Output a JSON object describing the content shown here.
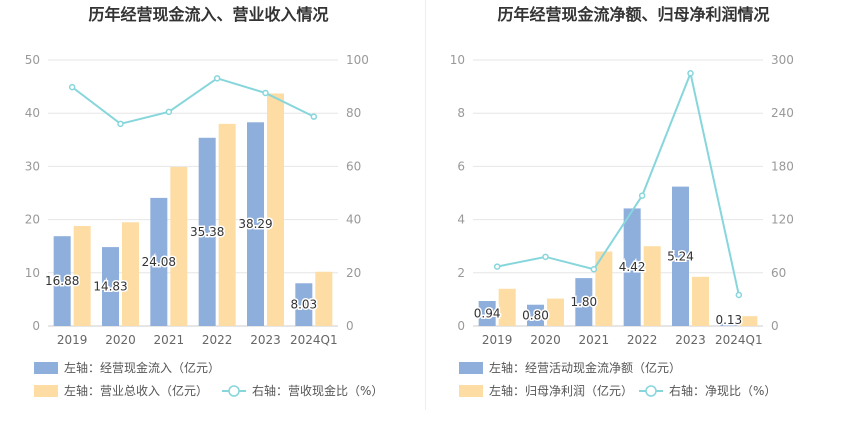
{
  "charts": [
    {
      "title": "历年经营现金流入、营业收入情况",
      "categories": [
        "2019",
        "2020",
        "2021",
        "2022",
        "2023",
        "2024Q1"
      ],
      "left_ticks": [
        "0",
        "10",
        "20",
        "30",
        "40",
        "50"
      ],
      "right_ticks": [
        "0",
        "20",
        "40",
        "60",
        "80",
        "100"
      ],
      "legend": [
        "左轴：经营现金流入（亿元）",
        "左轴：营业总收入（亿元）",
        "右轴：营收现金比（%）"
      ],
      "colors": {
        "bar1": "#8eaedc",
        "bar2": "#fedda5",
        "line": "#86d6dc"
      }
    },
    {
      "title": "历年经营现金流净额、归母净利润情况",
      "categories": [
        "2019",
        "2020",
        "2021",
        "2022",
        "2023",
        "2024Q1"
      ],
      "left_ticks": [
        "0",
        "2",
        "4",
        "6",
        "8",
        "10"
      ],
      "right_ticks": [
        "0",
        "60",
        "120",
        "180",
        "240",
        "300"
      ],
      "legend": [
        "左轴：经营活动现金流净额（亿元）",
        "左轴：归母净利润（亿元）",
        "右轴：净现比（%）"
      ],
      "colors": {
        "bar1": "#8eaedc",
        "bar2": "#fedda5",
        "line": "#86d6dc"
      }
    }
  ],
  "chart_data": [
    {
      "type": "bar",
      "categories": [
        "2019",
        "2020",
        "2021",
        "2022",
        "2023",
        "2024Q1"
      ],
      "series": [
        {
          "name": "经营现金流入（亿元）",
          "axis": "left",
          "values": [
            16.88,
            14.83,
            24.08,
            35.38,
            38.29,
            8.03
          ],
          "labels": [
            "16.88",
            "14.83",
            "24.08",
            "35.38",
            "38.29",
            "8.03"
          ]
        },
        {
          "name": "营业总收入（亿元）",
          "axis": "left",
          "values": [
            18.8,
            19.5,
            29.9,
            38.0,
            43.7,
            10.2
          ]
        },
        {
          "name": "营收现金比（%）",
          "axis": "right",
          "type": "line",
          "values": [
            89.8,
            76.0,
            80.5,
            93.1,
            87.6,
            78.7
          ]
        }
      ],
      "ylim_left": [
        0,
        50
      ],
      "ylim_right": [
        0,
        100
      ],
      "grid": true,
      "legend_position": "bottom"
    },
    {
      "type": "bar",
      "categories": [
        "2019",
        "2020",
        "2021",
        "2022",
        "2023",
        "2024Q1"
      ],
      "series": [
        {
          "name": "经营活动现金流净额（亿元）",
          "axis": "left",
          "values": [
            0.94,
            0.8,
            1.8,
            4.42,
            5.24,
            0.13
          ],
          "labels": [
            "0.94",
            "0.80",
            "1.80",
            "4.42",
            "5.24",
            "0.13"
          ]
        },
        {
          "name": "归母净利润（亿元）",
          "axis": "left",
          "values": [
            1.4,
            1.03,
            2.8,
            3.0,
            1.85,
            0.37
          ]
        },
        {
          "name": "净现比（%）",
          "axis": "right",
          "type": "line",
          "values": [
            67,
            78,
            64,
            147,
            285,
            35
          ]
        }
      ],
      "ylim_left": [
        0,
        10
      ],
      "ylim_right": [
        0,
        300
      ],
      "grid": true,
      "legend_position": "bottom"
    }
  ]
}
